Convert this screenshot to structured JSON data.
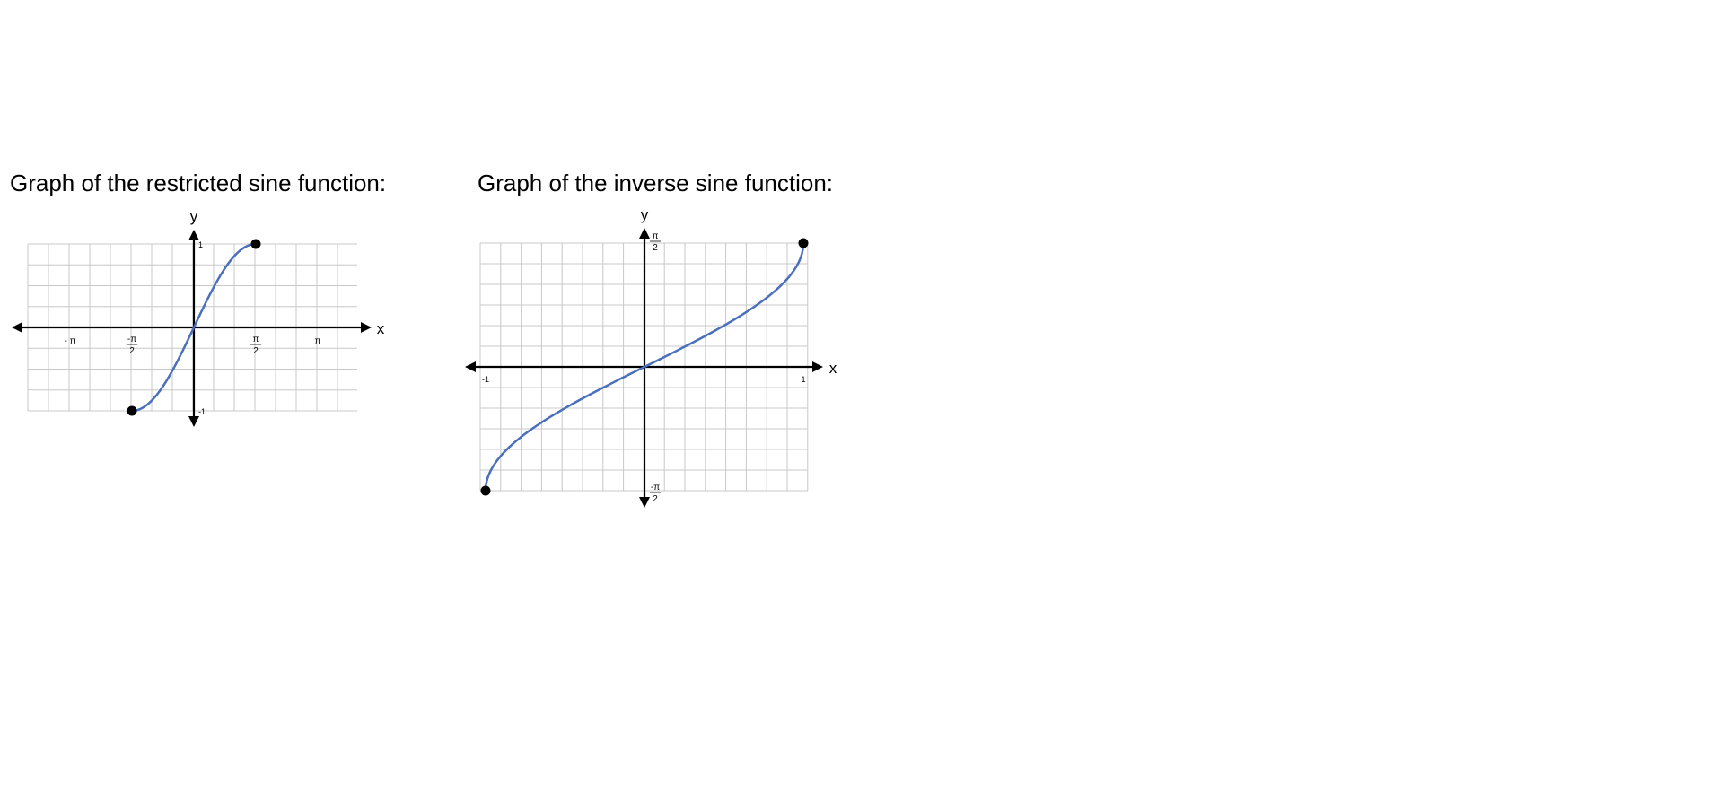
{
  "colors": {
    "curve": "#4a6fbd",
    "grid": "#c8c8c8",
    "axis": "#000000",
    "background": "#ffffff"
  },
  "chart_data": [
    {
      "type": "line",
      "title": "Graph of the restricted sine function:",
      "xlabel": "x",
      "ylabel": "y",
      "xlim": [
        -4.0,
        4.0
      ],
      "ylim": [
        -1.0,
        1.0
      ],
      "grid": true,
      "x_ticks": [
        "- π",
        "-π/2",
        "π/2",
        "π"
      ],
      "x_tick_values": [
        -3.1416,
        -1.5708,
        1.5708,
        3.1416
      ],
      "y_ticks": [
        "1",
        "-1"
      ],
      "y_tick_values": [
        1,
        -1
      ],
      "series": [
        {
          "function": "sin(x)",
          "x": [
            -1.5708,
            -1.1781,
            -0.7854,
            -0.3927,
            0,
            0.3927,
            0.7854,
            1.1781,
            1.5708
          ],
          "y": [
            -1.0,
            -0.9239,
            -0.7071,
            -0.3827,
            0.0,
            0.3827,
            0.7071,
            0.9239,
            1.0
          ],
          "endpoints": [
            [
              -1.5708,
              -1.0
            ],
            [
              1.5708,
              1.0
            ]
          ]
        }
      ]
    },
    {
      "type": "line",
      "title": "Graph of the inverse sine function:",
      "xlabel": "x",
      "ylabel": "y",
      "xlim": [
        -1.0,
        1.0
      ],
      "ylim": [
        -1.5708,
        1.5708
      ],
      "grid": true,
      "x_ticks": [
        "-1",
        "1"
      ],
      "x_tick_values": [
        -1,
        1
      ],
      "y_ticks": [
        "π/2",
        "-π/2"
      ],
      "y_tick_values": [
        1.5708,
        -1.5708
      ],
      "series": [
        {
          "function": "arcsin(x)",
          "x": [
            -1.0,
            -0.75,
            -0.5,
            -0.25,
            0.0,
            0.25,
            0.5,
            0.75,
            1.0
          ],
          "y": [
            -1.5708,
            -0.8481,
            -0.5236,
            -0.2527,
            0.0,
            0.2527,
            0.5236,
            0.8481,
            1.5708
          ],
          "endpoints": [
            [
              -1.0,
              -1.5708
            ],
            [
              1.0,
              1.5708
            ]
          ]
        }
      ]
    }
  ]
}
